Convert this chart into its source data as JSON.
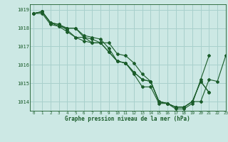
{
  "title": "Graphe pression niveau de la mer (hPa)",
  "bg_color": "#cce8e4",
  "line_color": "#1a5c2a",
  "grid_color": "#a8d0cc",
  "xlim": [
    -0.5,
    23
  ],
  "ylim": [
    1013.5,
    1019.3
  ],
  "yticks": [
    1014,
    1015,
    1016,
    1017,
    1018,
    1019
  ],
  "xticks": [
    0,
    1,
    2,
    3,
    4,
    5,
    6,
    7,
    8,
    9,
    10,
    11,
    12,
    13,
    14,
    15,
    16,
    17,
    18,
    19,
    20,
    21,
    22,
    23
  ],
  "series": [
    [
      1018.8,
      1018.9,
      1018.3,
      1018.1,
      1018.0,
      1018.0,
      1017.5,
      1017.4,
      1017.2,
      1017.2,
      1016.6,
      1016.5,
      1016.1,
      1015.5,
      1015.1,
      1014.0,
      1013.9,
      1013.7,
      1013.7,
      1014.0,
      1015.1,
      1014.5,
      null,
      null
    ],
    [
      1018.8,
      1018.9,
      1018.3,
      1018.2,
      1018.0,
      1018.0,
      1017.6,
      1017.5,
      1017.4,
      1016.9,
      1016.2,
      1016.1,
      1015.5,
      1014.8,
      1014.8,
      1013.9,
      1013.9,
      1013.6,
      1013.6,
      1013.9,
      1015.2,
      1016.5,
      null,
      null
    ],
    [
      1018.8,
      1018.9,
      1018.3,
      1018.2,
      1017.9,
      1017.5,
      1017.3,
      1017.2,
      1017.2,
      1016.7,
      1016.2,
      1016.1,
      1015.6,
      1015.2,
      1015.1,
      1014.0,
      1013.9,
      1013.7,
      1013.7,
      1014.0,
      1015.1,
      1014.5,
      null,
      null
    ],
    [
      1018.8,
      1018.8,
      1018.2,
      1018.1,
      1017.8,
      1017.5,
      1017.5,
      1017.2,
      1017.2,
      1016.7,
      1016.2,
      1016.1,
      1015.6,
      1015.2,
      1015.1,
      1014.0,
      1013.9,
      1013.7,
      1013.7,
      1014.0,
      1014.0,
      1015.2,
      1015.1,
      1016.5
    ]
  ]
}
